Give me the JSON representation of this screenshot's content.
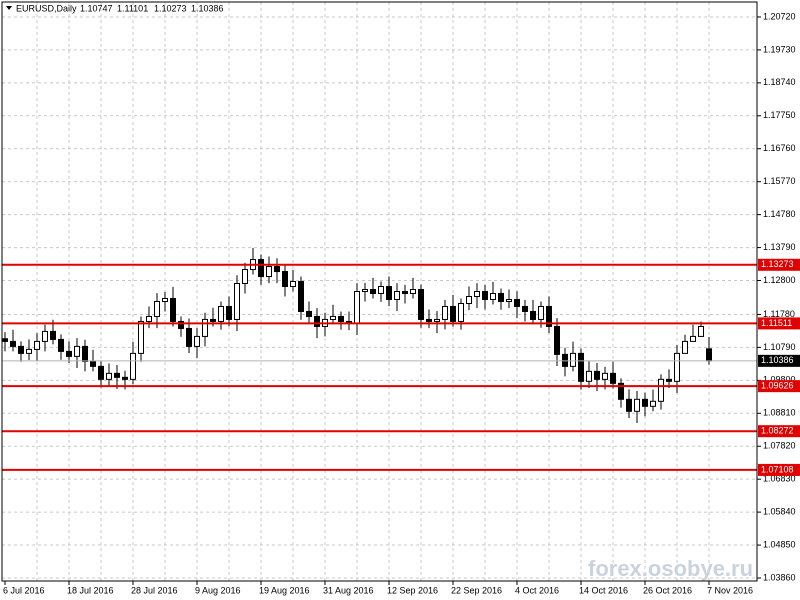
{
  "chart_data": {
    "type": "candlestick",
    "title": "EURUSD,Daily",
    "watermark": "forex.osobye.ru",
    "categories": [
      "6 Jul 2016",
      null,
      null,
      null,
      null,
      null,
      null,
      null,
      "18 Jul 2016",
      null,
      null,
      null,
      null,
      null,
      null,
      null,
      "28 Jul 2016",
      null,
      null,
      null,
      null,
      null,
      null,
      null,
      "9 Aug 2016",
      null,
      null,
      null,
      null,
      null,
      null,
      null,
      "19 Aug 2016",
      null,
      null,
      null,
      null,
      null,
      null,
      null,
      "31 Aug 2016",
      null,
      null,
      null,
      null,
      null,
      null,
      null,
      "12 Sep 2016",
      null,
      null,
      null,
      null,
      null,
      null,
      null,
      "22 Sep 2016",
      null,
      null,
      null,
      null,
      null,
      null,
      null,
      "4 Oct 2016",
      null,
      null,
      null,
      null,
      null,
      null,
      null,
      "14 Oct 2016",
      null,
      null,
      null,
      null,
      null,
      null,
      null,
      "26 Oct 2016",
      null,
      null,
      null,
      null,
      null,
      null,
      null,
      "7 Nov 2016"
    ],
    "open": [
      1.1105,
      1.1097,
      1.1082,
      1.1061,
      1.1073,
      1.1097,
      1.1127,
      1.1103,
      1.1067,
      1.1052,
      1.1082,
      1.1037,
      1.1022,
      1.0983,
      1.1001,
      1.0989,
      1.0983,
      1.1061,
      1.1157,
      1.1172,
      1.1217,
      1.1226,
      1.1157,
      1.1136,
      1.1082,
      1.1112,
      1.1163,
      1.1157,
      1.1202,
      1.1163,
      1.1271,
      1.1313,
      1.1343,
      1.1292,
      1.1322,
      1.1307,
      1.1262,
      1.1277,
      1.1187,
      1.1172,
      1.1142,
      1.1163,
      1.1172,
      1.1157,
      1.1151,
      1.1247,
      1.1253,
      1.1241,
      1.1262,
      1.1223,
      1.1247,
      1.1241,
      1.1253,
      1.1163,
      1.1157,
      1.1163,
      1.1202,
      1.1157,
      1.1211,
      1.1232,
      1.1247,
      1.1223,
      1.1241,
      1.1217,
      1.1223,
      1.1202,
      1.1187,
      1.1163,
      1.1202,
      1.1142,
      1.1058,
      1.1022,
      1.1061,
      1.0977,
      1.1007,
      1.0983,
      1.1001,
      1.0971,
      1.0923,
      1.0887,
      1.0923,
      1.0902,
      1.0917,
      1.0983,
      1.0977,
      1.1061,
      1.1097,
      1.1112,
      1.10747
    ],
    "high": [
      1.1125,
      1.1132,
      1.1097,
      1.1103,
      1.1122,
      1.1147,
      1.1162,
      1.1118,
      1.1097,
      1.1107,
      1.1102,
      1.1072,
      1.1037,
      1.1031,
      1.1026,
      1.1009,
      1.1096,
      1.1172,
      1.1202,
      1.1242,
      1.1246,
      1.1261,
      1.1172,
      1.1166,
      1.1137,
      1.1183,
      1.1198,
      1.1217,
      1.1232,
      1.1296,
      1.1333,
      1.1378,
      1.1358,
      1.1352,
      1.1347,
      1.1327,
      1.1312,
      1.1292,
      1.1217,
      1.1197,
      1.1183,
      1.1207,
      1.1187,
      1.1187,
      1.1272,
      1.1273,
      1.1288,
      1.1277,
      1.1292,
      1.1272,
      1.1267,
      1.1288,
      1.1268,
      1.1193,
      1.1188,
      1.1222,
      1.1237,
      1.1226,
      1.1262,
      1.1272,
      1.1267,
      1.1276,
      1.1256,
      1.1253,
      1.1248,
      1.1222,
      1.1222,
      1.1217,
      1.1232,
      1.1167,
      1.1078,
      1.1096,
      1.1076,
      1.1037,
      1.1032,
      1.1021,
      1.1036,
      1.0986,
      1.0953,
      1.0948,
      1.0943,
      1.0952,
      1.0998,
      1.1013,
      1.1086,
      1.1117,
      1.1147,
      1.1157,
      1.11101
    ],
    "low": [
      1.1067,
      1.1067,
      1.1036,
      1.1041,
      1.1038,
      1.1067,
      1.1088,
      1.1042,
      1.1032,
      1.1017,
      1.1007,
      1.1007,
      1.0958,
      1.0963,
      1.0954,
      1.0953,
      1.0968,
      1.1036,
      1.1137,
      1.1137,
      1.1187,
      1.1142,
      1.1111,
      1.1062,
      1.1047,
      1.1082,
      1.1142,
      1.1132,
      1.1143,
      1.1128,
      1.1241,
      1.1298,
      1.1267,
      1.1272,
      1.1272,
      1.1232,
      1.1247,
      1.1162,
      1.1152,
      1.1107,
      1.1112,
      1.1148,
      1.1132,
      1.1131,
      1.1116,
      1.1217,
      1.1226,
      1.1216,
      1.1203,
      1.1188,
      1.1211,
      1.1226,
      1.1138,
      1.1137,
      1.1122,
      1.1133,
      1.1142,
      1.1132,
      1.1191,
      1.1197,
      1.1193,
      1.1208,
      1.1192,
      1.1197,
      1.1167,
      1.1157,
      1.1148,
      1.1138,
      1.1122,
      1.1023,
      1.0992,
      1.1007,
      1.0952,
      1.0957,
      1.0948,
      1.0953,
      1.0956,
      1.0898,
      1.0867,
      1.0852,
      1.0872,
      1.0887,
      1.0892,
      1.0957,
      1.0942,
      1.1067,
      1.1097,
      1.1117,
      1.10273
    ],
    "close": [
      1.1097,
      1.1082,
      1.1061,
      1.1073,
      1.1097,
      1.1127,
      1.1103,
      1.1067,
      1.1052,
      1.1082,
      1.1037,
      1.1022,
      1.0983,
      1.1001,
      1.0989,
      1.0983,
      1.1061,
      1.1157,
      1.1172,
      1.1217,
      1.1226,
      1.1157,
      1.1136,
      1.1082,
      1.1112,
      1.1163,
      1.1157,
      1.1202,
      1.1163,
      1.1271,
      1.1313,
      1.1343,
      1.1292,
      1.1322,
      1.1307,
      1.1262,
      1.1277,
      1.1187,
      1.1172,
      1.1142,
      1.1163,
      1.1172,
      1.1157,
      1.1151,
      1.1247,
      1.1253,
      1.1241,
      1.1262,
      1.1223,
      1.1247,
      1.1241,
      1.1253,
      1.1163,
      1.1157,
      1.1163,
      1.1202,
      1.1157,
      1.1211,
      1.1232,
      1.1247,
      1.1223,
      1.1241,
      1.1217,
      1.1223,
      1.1202,
      1.1187,
      1.1163,
      1.1202,
      1.1142,
      1.1058,
      1.1022,
      1.1061,
      1.0977,
      1.1007,
      1.0983,
      1.1001,
      1.0971,
      1.0923,
      1.0887,
      1.0923,
      1.0902,
      1.0917,
      1.0983,
      1.0977,
      1.1061,
      1.1097,
      1.1112,
      1.1142,
      1.10386
    ],
    "levels": [
      1.13273,
      1.11511,
      1.09626,
      1.08272,
      1.07108
    ],
    "level_color": "#e00000",
    "ylim": [
      1.0377,
      1.2117
    ],
    "yticks": [
      {
        "value": 1.2072,
        "label": "1.20720"
      },
      {
        "value": 1.1973,
        "label": "1.19730"
      },
      {
        "value": 1.1874,
        "label": "1.18740"
      },
      {
        "value": 1.1775,
        "label": "1.17750"
      },
      {
        "value": 1.1676,
        "label": "1.16760"
      },
      {
        "value": 1.1577,
        "label": "1.15770"
      },
      {
        "value": 1.1478,
        "label": "1.14780"
      },
      {
        "value": 1.1379,
        "label": "1.13790"
      },
      {
        "value": 1.128,
        "label": "1.12800"
      },
      {
        "value": 1.1178,
        "label": "1.11780"
      },
      {
        "value": 1.1079,
        "label": "1.10790"
      },
      {
        "value": 1.098,
        "label": "1.09800"
      },
      {
        "value": 1.0881,
        "label": "1.08810"
      },
      {
        "value": 1.0782,
        "label": "1.07820"
      },
      {
        "value": 1.0683,
        "label": "1.06830"
      },
      {
        "value": 1.0584,
        "label": "1.05840"
      },
      {
        "value": 1.0485,
        "label": "1.04850"
      },
      {
        "value": 1.0386,
        "label": "1.03860"
      }
    ],
    "grid": true,
    "up_color": "#ffffff",
    "down_color": "#000000"
  }
}
